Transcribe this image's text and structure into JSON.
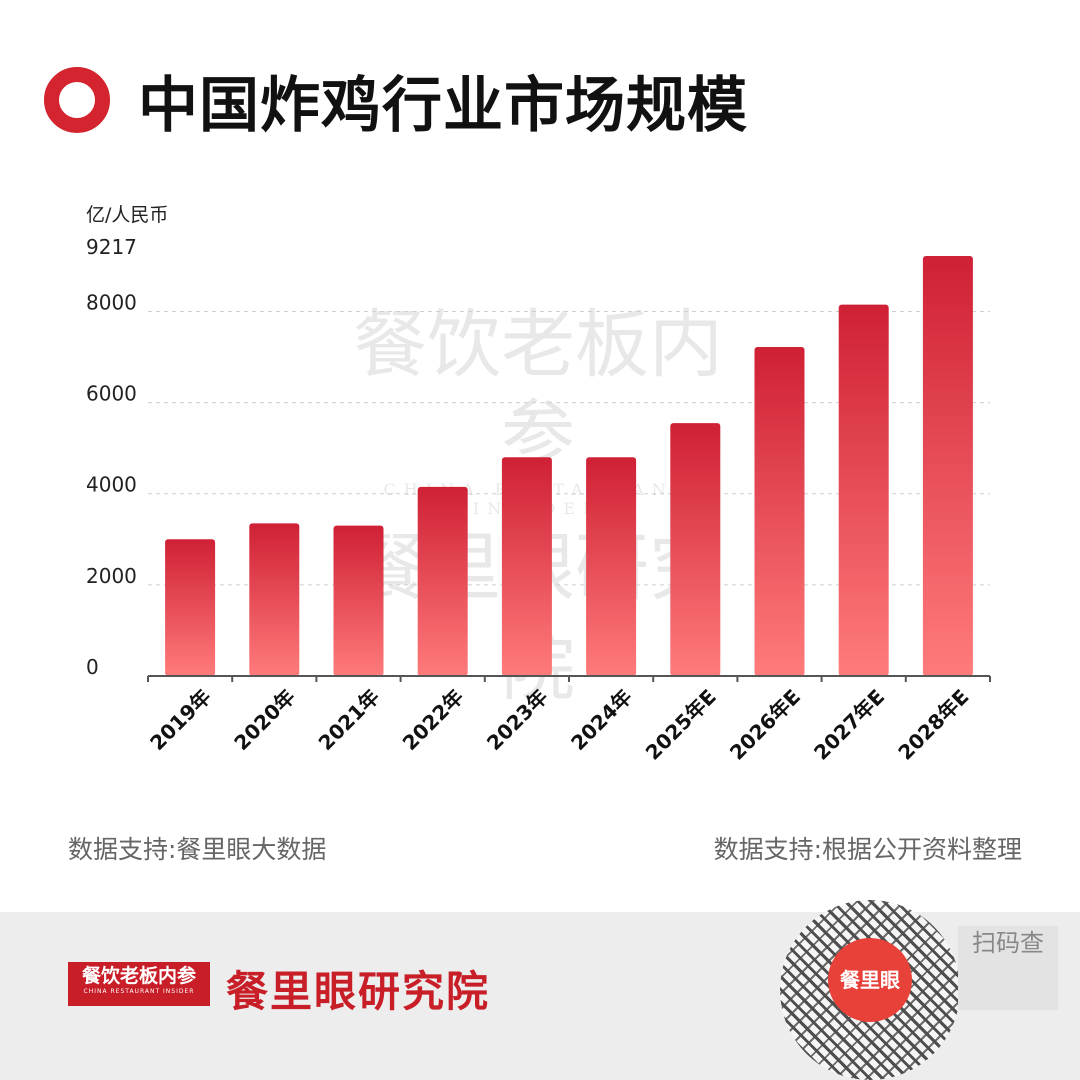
{
  "page": {
    "title": "中国炸鸡行业市场规模",
    "unit_label": "亿/人民币",
    "source_left": "数据支持:餐里眼大数据",
    "source_right": "数据支持:根据公开资料整理",
    "watermark": {
      "line1": "餐饮老板内参",
      "sub": "CHINA RESTAURANT INSIDER",
      "line2": "餐里眼研究院"
    },
    "footer": {
      "logo_main": "餐饮老板内参",
      "logo_sub": "CHINA RESTAURANT INSIDER",
      "brand": "餐里眼研究院",
      "qr_center": "餐里眼",
      "scan_text": "扫码查"
    },
    "colors": {
      "accent": "#d42430",
      "bar_top": "#cf2035",
      "bar_bottom": "#ff7b7b"
    }
  },
  "chart_data": {
    "type": "bar",
    "title": "中国炸鸡行业市场规模",
    "ylabel": "亿/人民币",
    "xlabel": "",
    "categories": [
      "2019年",
      "2020年",
      "2021年",
      "2022年",
      "2023年",
      "2024年",
      "2025年E",
      "2026年E",
      "2027年E",
      "2028年E"
    ],
    "values": [
      3000,
      3350,
      3300,
      4150,
      4800,
      4800,
      5550,
      7220,
      8150,
      9217
    ],
    "ylim": [
      0,
      9217
    ],
    "yticks": [
      "0",
      "2000",
      "4000",
      "6000",
      "8000",
      "9217"
    ],
    "ytick_values": [
      0,
      2000,
      4000,
      6000,
      8000,
      9217
    ],
    "grid": true,
    "legend": "none"
  }
}
